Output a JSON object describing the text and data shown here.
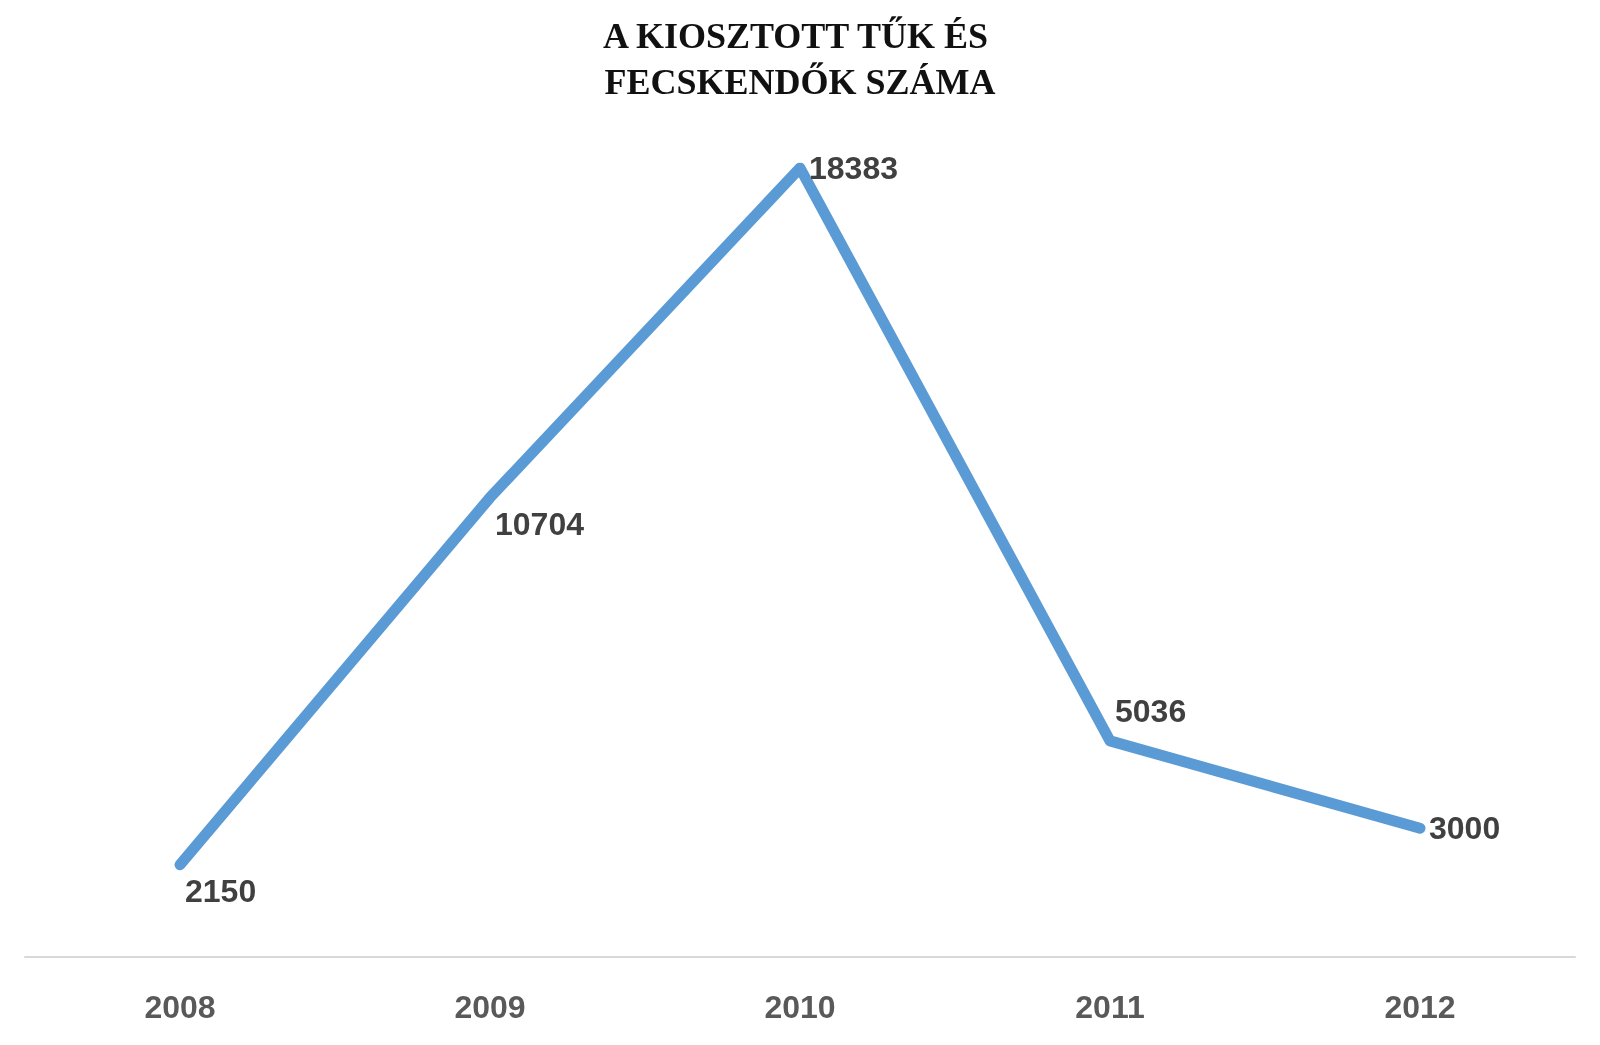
{
  "chart_data": {
    "type": "line",
    "title": "A KIOSZTOTT TŰK ÉS FECSKENDŐK SZÁMA",
    "categories": [
      "2008",
      "2009",
      "2010",
      "2011",
      "2012"
    ],
    "series": [
      {
        "color": "#5b9bd5",
        "values": [
          2150,
          10704,
          18383,
          5036,
          3000
        ]
      }
    ],
    "data_labels": true,
    "grid": false,
    "marker": "none",
    "line_style": "solid",
    "tick_labels": "x"
  }
}
